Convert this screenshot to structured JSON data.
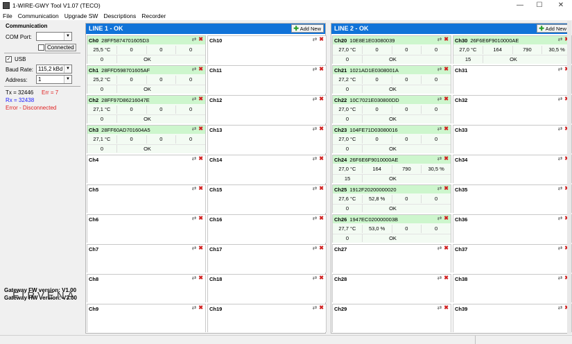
{
  "window": {
    "title": "1-WIRE-GWY Tool V1.07 (TECO)",
    "minimize": "—",
    "maximize": "☐",
    "close": "✕"
  },
  "menu": [
    "File",
    "Communication",
    "Upgrade SW",
    "Descriptions",
    "Recorder"
  ],
  "left": {
    "communication_heading": "Communication",
    "com_port_label": "COM Port:",
    "com_port_value": "",
    "connected_label": "Connected",
    "usb_label": "USB",
    "baud_label": "Baud Rate:",
    "baud_value": "115,2 kBd",
    "address_label": "Address:",
    "address_value": "1",
    "tx": "Tx = 32446",
    "err": "Err = 7",
    "rx": "Rx = 32438",
    "error_status": "Error - Disconnected",
    "fw": "Gateway FW version: V1.00",
    "hw": "Gateway HW version: V3.00",
    "logo": "FIRVENA"
  },
  "line1": {
    "title": "LINE 1 - OK",
    "add_label": "Add New"
  },
  "line2": {
    "title": "LINE 2 - OK",
    "add_label": "Add New"
  },
  "icons": {
    "swap": "swap-icon",
    "delete": "delete-icon",
    "add": "add-icon"
  },
  "channels": {
    "Ch0": {
      "id": "28FF5874701605D3",
      "v": [
        "25,5 °C",
        "0",
        "0",
        "0"
      ],
      "s": "0",
      "st": "OK"
    },
    "Ch1": {
      "id": "28FFD598701605AF",
      "v": [
        "25,2 °C",
        "0",
        "0",
        "0"
      ],
      "s": "0",
      "st": "OK"
    },
    "Ch2": {
      "id": "28FF97D86216047E",
      "v": [
        "27,1 °C",
        "0",
        "0",
        "0"
      ],
      "s": "0",
      "st": "OK"
    },
    "Ch3": {
      "id": "28FF60AD701604A5",
      "v": [
        "27,1 °C",
        "0",
        "0",
        "0"
      ],
      "s": "0",
      "st": "OK"
    },
    "Ch20": {
      "id": "10E8E1E03080039",
      "v": [
        "27,0 °C",
        "0",
        "0",
        "0"
      ],
      "s": "0",
      "st": "OK"
    },
    "Ch21": {
      "id": "1021AD1E0308001A",
      "v": [
        "27,2 °C",
        "0",
        "0",
        "0"
      ],
      "s": "0",
      "st": "OK"
    },
    "Ch22": {
      "id": "10C7021E030800DD",
      "v": [
        "27,0 °C",
        "0",
        "0",
        "0"
      ],
      "s": "0",
      "st": "OK"
    },
    "Ch23": {
      "id": "104FE71D03080016",
      "v": [
        "27,0 °C",
        "0",
        "0",
        "0"
      ],
      "s": "0",
      "st": "OK"
    },
    "Ch24": {
      "id": "26F6E6F9010000AE",
      "v": [
        "27,0 °C",
        "164",
        "790",
        "30,5 %"
      ],
      "s": "15",
      "st": "OK"
    },
    "Ch25": {
      "id": "1912F20200000020",
      "v": [
        "27,6 °C",
        "52,8 %",
        "0",
        "0"
      ],
      "s": "0",
      "st": "OK"
    },
    "Ch26": {
      "id": "1947EC020000003B",
      "v": [
        "27,7 °C",
        "53,0 %",
        "0",
        "0"
      ],
      "s": "0",
      "st": "OK"
    },
    "Ch30": {
      "id": "26F6E6F9010000AE",
      "v": [
        "27,0 °C",
        "164",
        "790",
        "30,5 %"
      ],
      "s": "15",
      "st": "OK"
    }
  }
}
